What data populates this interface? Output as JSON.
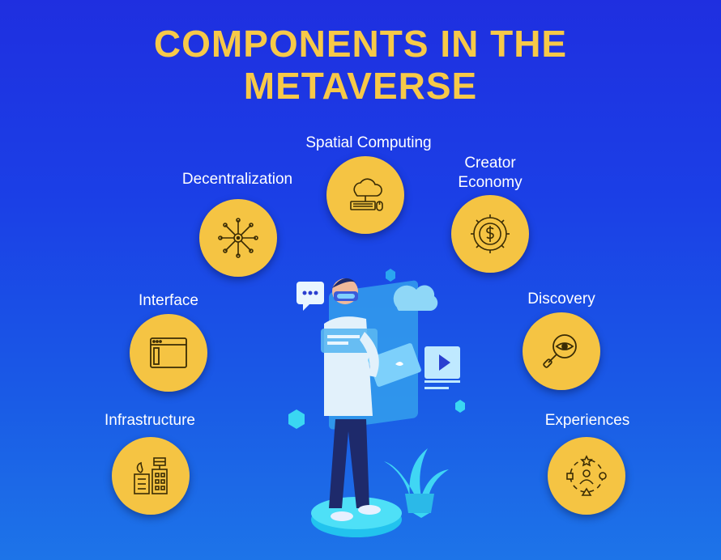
{
  "title_line1": "COMPONENTS IN THE",
  "title_line2": "METAVERSE",
  "components": [
    {
      "label": "Spatial Computing",
      "icon": "cloud-computer-icon"
    },
    {
      "label": "Decentralization",
      "icon": "network-nodes-icon"
    },
    {
      "label": "Creator",
      "label2": "Economy",
      "icon": "gear-coin-icon"
    },
    {
      "label": "Interface",
      "icon": "browser-window-icon"
    },
    {
      "label": "Discovery",
      "icon": "magnifier-eye-icon"
    },
    {
      "label": "Infrastructure",
      "icon": "buildings-icon"
    },
    {
      "label": "Experiences",
      "icon": "people-shapes-icon"
    }
  ],
  "colors": {
    "background": "#1f2fe0",
    "accent": "#f5c443",
    "title": "#f7c948",
    "icon_stroke": "#3a2c05"
  }
}
